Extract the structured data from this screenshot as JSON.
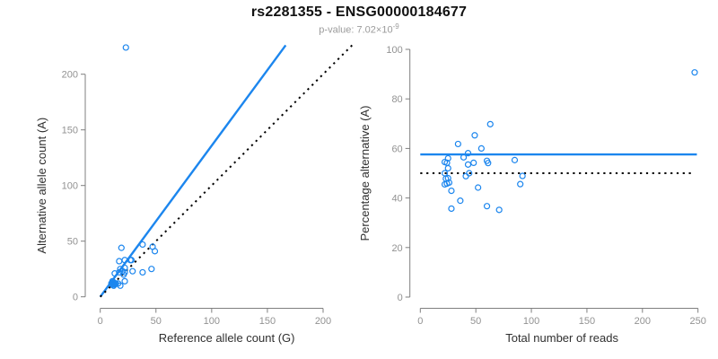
{
  "header": {
    "title": "rs2281355 - ENSG00000184677",
    "pvalue_base": "p-value: 7.02×10",
    "pvalue_exponent": "-9"
  },
  "colors": {
    "accent_blue": "#1C86EE",
    "identity_black": "#000000",
    "axis_gray": "#7f7f7f",
    "tick_label_gray": "#929292",
    "axis_title_color": "#2f2f2f",
    "background": "#ffffff"
  },
  "chart_data": [
    {
      "id": "left",
      "type": "scatter",
      "title": "",
      "xlabel": "Reference allele count (G)",
      "ylabel": "Alternative allele count (A)",
      "xticks": [
        0,
        50,
        100,
        150,
        200
      ],
      "yticks": [
        0,
        50,
        100,
        150,
        200
      ],
      "xlim": [
        0,
        227
      ],
      "ylim": [
        0,
        228
      ],
      "grid": false,
      "legend": "none",
      "points": [
        [
          23,
          224
        ],
        [
          19,
          44
        ],
        [
          17,
          32
        ],
        [
          13,
          21
        ],
        [
          22,
          33
        ],
        [
          18,
          25
        ],
        [
          17,
          22
        ],
        [
          11,
          14
        ],
        [
          11,
          13
        ],
        [
          38,
          47
        ],
        [
          20,
          23
        ],
        [
          27,
          33
        ],
        [
          28,
          33
        ],
        [
          22,
          26
        ],
        [
          10,
          12
        ],
        [
          12,
          13
        ],
        [
          22,
          22
        ],
        [
          21,
          20
        ],
        [
          47,
          45
        ],
        [
          11,
          11
        ],
        [
          13,
          12
        ],
        [
          12,
          11
        ],
        [
          14,
          12
        ],
        [
          13,
          11
        ],
        [
          12,
          10
        ],
        [
          49,
          41
        ],
        [
          29,
          23
        ],
        [
          16,
          12
        ],
        [
          22,
          14
        ],
        [
          38,
          22
        ],
        [
          46,
          25
        ],
        [
          18,
          10
        ]
      ],
      "lines": [
        {
          "name": "fit-line",
          "style": "solid",
          "color_key": "accent_blue",
          "slope": 1.358,
          "intercept": 0
        },
        {
          "name": "identity-line",
          "style": "dotted",
          "color_key": "identity_black",
          "slope": 1,
          "intercept": 0
        }
      ]
    },
    {
      "id": "right",
      "type": "scatter",
      "title": "",
      "xlabel": "Total number of reads",
      "ylabel": "Percentage alternative (A)",
      "xticks": [
        0,
        50,
        100,
        150,
        200,
        250
      ],
      "yticks": [
        0,
        20,
        40,
        60,
        80,
        100
      ],
      "xlim": [
        0,
        255
      ],
      "ylim": [
        0,
        100
      ],
      "grid": false,
      "legend": "none",
      "points": [
        [
          247,
          90.7
        ],
        [
          63,
          69.8
        ],
        [
          49,
          65.3
        ],
        [
          34,
          61.8
        ],
        [
          55,
          60
        ],
        [
          43,
          58.1
        ],
        [
          39,
          56.4
        ],
        [
          25,
          56
        ],
        [
          24,
          54.2
        ],
        [
          85,
          55.3
        ],
        [
          43,
          53.5
        ],
        [
          60,
          55
        ],
        [
          61,
          54.1
        ],
        [
          48,
          54.2
        ],
        [
          22,
          54.5
        ],
        [
          25,
          52
        ],
        [
          44,
          50
        ],
        [
          41,
          48.8
        ],
        [
          92,
          48.9
        ],
        [
          22,
          50
        ],
        [
          25,
          48
        ],
        [
          23,
          47.8
        ],
        [
          26,
          46.2
        ],
        [
          24,
          45.8
        ],
        [
          22,
          45.5
        ],
        [
          90,
          45.6
        ],
        [
          52,
          44.2
        ],
        [
          28,
          42.9
        ],
        [
          36,
          38.9
        ],
        [
          60,
          36.7
        ],
        [
          71,
          35.2
        ],
        [
          28,
          35.7
        ]
      ],
      "lines": [
        {
          "name": "mean-percentage-line",
          "style": "solid",
          "color_key": "accent_blue",
          "y": 57.6,
          "xspan": [
            0,
            249
          ]
        },
        {
          "name": "expected-percentage-line",
          "style": "dotted",
          "color_key": "identity_black",
          "y": 50,
          "xspan": [
            0,
            246
          ]
        }
      ]
    }
  ]
}
